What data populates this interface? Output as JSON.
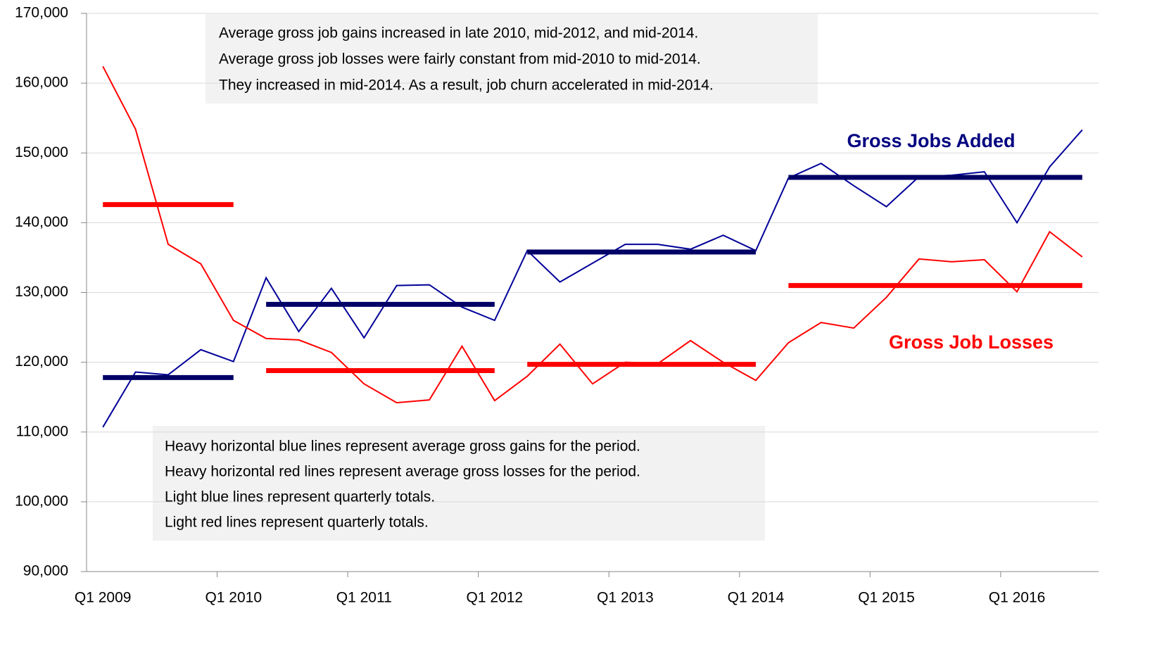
{
  "chart_data": {
    "type": "line",
    "categories": [
      "Q1 2009",
      null,
      null,
      null,
      "Q1 2010",
      null,
      null,
      null,
      "Q1 2011",
      null,
      null,
      null,
      "Q1 2012",
      null,
      null,
      null,
      "Q1 2013",
      null,
      null,
      null,
      "Q1 2014",
      null,
      null,
      null,
      "Q1 2015",
      null,
      null,
      null,
      "Q1 2016",
      null,
      null
    ],
    "series": [
      {
        "name": "Gross Jobs Added",
        "color": "#000099",
        "label_color": "#000080",
        "values": [
          110700,
          118600,
          118200,
          121800,
          120100,
          132100,
          124400,
          130600,
          123500,
          131000,
          131100,
          127900,
          126000,
          136000,
          131500,
          134200,
          136900,
          136900,
          136200,
          138200,
          136000,
          146400,
          148500,
          145300,
          142300,
          146600,
          146800,
          147300,
          140000,
          148000,
          153300
        ]
      },
      {
        "name": "Gross Job Losses",
        "color": "#ff0000",
        "label_color": "#ff0000",
        "values": [
          162400,
          153400,
          136900,
          134100,
          126000,
          123400,
          123200,
          121400,
          116900,
          114200,
          114600,
          122300,
          114500,
          118000,
          122600,
          116900,
          120000,
          119800,
          123100,
          120000,
          117400,
          122800,
          125700,
          124900,
          129300,
          134800,
          134400,
          134700,
          130100,
          138700,
          135100
        ]
      }
    ],
    "average_lines": [
      {
        "color": "#000066",
        "start": 0,
        "end": 4,
        "value": 117800
      },
      {
        "color": "#000066",
        "start": 5,
        "end": 12,
        "value": 128300
      },
      {
        "color": "#000066",
        "start": 13,
        "end": 20,
        "value": 135800
      },
      {
        "color": "#000066",
        "start": 21,
        "end": 30,
        "value": 146500
      },
      {
        "color": "#ff0000",
        "start": 0,
        "end": 4,
        "value": 142600
      },
      {
        "color": "#ff0000",
        "start": 5,
        "end": 12,
        "value": 118800
      },
      {
        "color": "#ff0000",
        "start": 13,
        "end": 20,
        "value": 119700
      },
      {
        "color": "#ff0000",
        "start": 21,
        "end": 30,
        "value": 131000
      }
    ],
    "ylim": [
      90000,
      170000
    ],
    "yticks": [
      {
        "value": 90000,
        "label": "90,000"
      },
      {
        "value": 100000,
        "label": "100,000"
      },
      {
        "value": 110000,
        "label": "110,000"
      },
      {
        "value": 120000,
        "label": "120,000"
      },
      {
        "value": 130000,
        "label": "130,000"
      },
      {
        "value": 140000,
        "label": "140,000"
      },
      {
        "value": 150000,
        "label": "150,000"
      },
      {
        "value": 160000,
        "label": "160,000"
      },
      {
        "value": 170000,
        "label": "170,000"
      }
    ],
    "grid": true,
    "annotations": [
      {
        "lines": [
          "Average gross job gains increased in late 2010, mid-2012, and mid-2014.",
          "Average gross job losses were fairly constant from mid-2010 to mid-2014.",
          "They increased in mid-2014. As a result, job churn accelerated in mid-2014."
        ]
      },
      {
        "lines": [
          "Heavy horizontal blue lines represent average gross gains for the period.",
          "Heavy horizontal red lines represent average gross losses for the period.",
          "Light blue lines represent quarterly totals.",
          "Light red lines represent quarterly totals."
        ]
      }
    ]
  }
}
